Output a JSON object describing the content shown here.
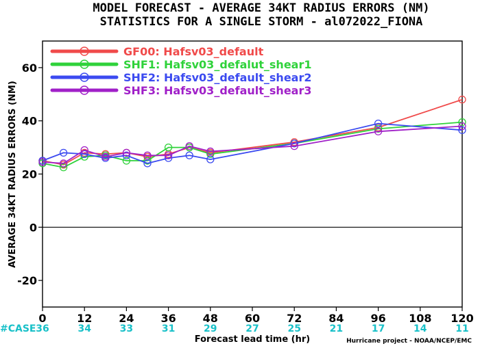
{
  "chart_data": {
    "type": "line",
    "title": "MODEL FORECAST - AVERAGE 34KT RADIUS ERRORS (NM)",
    "subtitle": "STATISTICS FOR A SINGLE STORM - al072022_FIONA",
    "xlabel": "Forecast lead time (hr)",
    "ylabel": "AVERAGE 34KT RADIUS ERRORS (NM)",
    "xlim": [
      0,
      120
    ],
    "ylim": [
      -30,
      70
    ],
    "x_ticks": [
      0,
      12,
      24,
      36,
      48,
      60,
      72,
      84,
      96,
      108,
      120
    ],
    "y_ticks": [
      -20,
      0,
      20,
      40,
      60
    ],
    "case_label": "#CASE",
    "cases": [
      "36",
      "34",
      "33",
      "31",
      "29",
      "27",
      "25",
      "21",
      "17",
      "14",
      "11"
    ],
    "zero_line": true,
    "grid": false,
    "legend_position": "top-left",
    "credit": "Hurricane project - NOAA/NCEP/EMC",
    "series": [
      {
        "name": "GF00: Hafsv03_default",
        "color": "#f04a4a",
        "x": [
          0,
          6,
          12,
          18,
          24,
          30,
          36,
          42,
          48,
          72,
          96,
          120
        ],
        "y": [
          25,
          23.5,
          28,
          27.5,
          28,
          26.5,
          27.5,
          30,
          28,
          32,
          37.5,
          48
        ]
      },
      {
        "name": "SHF1: Hafsv03_defalut_shear1",
        "color": "#2fd23a",
        "x": [
          0,
          6,
          12,
          18,
          24,
          30,
          36,
          42,
          48,
          72,
          96,
          120
        ],
        "y": [
          24,
          22.5,
          26.5,
          27,
          25,
          25,
          30,
          30,
          27.5,
          31.5,
          37,
          39.5
        ]
      },
      {
        "name": "SHF2: Hafsv03_default_shear2",
        "color": "#3b4af0",
        "x": [
          0,
          6,
          12,
          18,
          24,
          30,
          36,
          42,
          48,
          72,
          96,
          120
        ],
        "y": [
          25,
          28,
          27.5,
          26,
          27,
          24,
          26,
          27,
          25.5,
          31.5,
          39,
          36.5
        ]
      },
      {
        "name": "SHF3: Hafsv03_default_shear3",
        "color": "#a020c8",
        "x": [
          0,
          6,
          12,
          18,
          24,
          30,
          36,
          42,
          48,
          72,
          96,
          120
        ],
        "y": [
          24.5,
          24,
          29,
          26.5,
          28,
          27,
          27,
          30.5,
          28.5,
          30.5,
          36,
          38
        ]
      }
    ]
  }
}
